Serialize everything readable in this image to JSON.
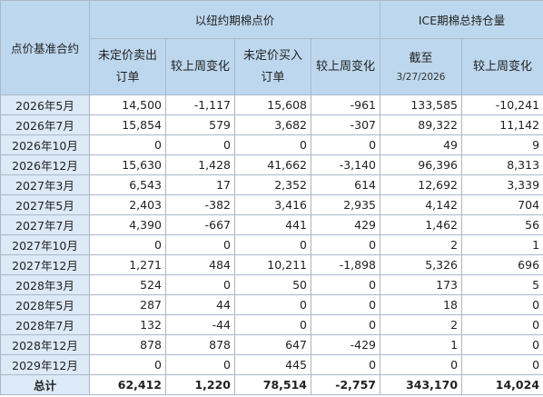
{
  "headers": {
    "contract": "点价基准合约",
    "group_ny": "以纽约期棉点价",
    "group_ice": "ICE期棉总持仓量",
    "unpriced_sell": "未定价卖出订单",
    "chg_week_1": "较上周变化",
    "unpriced_buy": "未定价买入订单",
    "chg_week_2": "较上周变化",
    "as_of": "截至",
    "as_of_date": "3/27/2026",
    "chg_week_3": "较上周变化"
  },
  "rows": [
    {
      "label": "2026年5月",
      "c1": "14,500",
      "c2": "-1,117",
      "c3": "15,608",
      "c4": "-961",
      "c5": "133,585",
      "c6": "-10,241"
    },
    {
      "label": "2026年7月",
      "c1": "15,854",
      "c2": "579",
      "c3": "3,682",
      "c4": "-307",
      "c5": "89,322",
      "c6": "11,142"
    },
    {
      "label": "2026年10月",
      "c1": "0",
      "c2": "0",
      "c3": "0",
      "c4": "0",
      "c5": "49",
      "c6": "9"
    },
    {
      "label": "2026年12月",
      "c1": "15,630",
      "c2": "1,428",
      "c3": "41,662",
      "c4": "-3,140",
      "c5": "96,396",
      "c6": "8,313"
    },
    {
      "label": "2027年3月",
      "c1": "6,543",
      "c2": "17",
      "c3": "2,352",
      "c4": "614",
      "c5": "12,692",
      "c6": "3,339"
    },
    {
      "label": "2027年5月",
      "c1": "2,403",
      "c2": "-382",
      "c3": "3,416",
      "c4": "2,935",
      "c5": "4,142",
      "c6": "704"
    },
    {
      "label": "2027年7月",
      "c1": "4,390",
      "c2": "-667",
      "c3": "441",
      "c4": "429",
      "c5": "1,462",
      "c6": "56"
    },
    {
      "label": "2027年10月",
      "c1": "0",
      "c2": "0",
      "c3": "0",
      "c4": "0",
      "c5": "2",
      "c6": "1"
    },
    {
      "label": "2027年12月",
      "c1": "1,271",
      "c2": "484",
      "c3": "10,211",
      "c4": "-1,898",
      "c5": "5,326",
      "c6": "696"
    },
    {
      "label": "2028年3月",
      "c1": "524",
      "c2": "0",
      "c3": "50",
      "c4": "0",
      "c5": "173",
      "c6": "5"
    },
    {
      "label": "2028年5月",
      "c1": "287",
      "c2": "44",
      "c3": "0",
      "c4": "0",
      "c5": "18",
      "c6": "0"
    },
    {
      "label": "2028年7月",
      "c1": "132",
      "c2": "-44",
      "c3": "0",
      "c4": "0",
      "c5": "2",
      "c6": "0"
    },
    {
      "label": "2028年12月",
      "c1": "878",
      "c2": "878",
      "c3": "647",
      "c4": "-429",
      "c5": "1",
      "c6": "0"
    },
    {
      "label": "2029年12月",
      "c1": "0",
      "c2": "0",
      "c3": "445",
      "c4": "0",
      "c5": "0",
      "c6": "0"
    }
  ],
  "total": {
    "label": "总计",
    "c1": "62,412",
    "c2": "1,220",
    "c3": "78,514",
    "c4": "-2,757",
    "c5": "343,170",
    "c6": "14,024"
  }
}
